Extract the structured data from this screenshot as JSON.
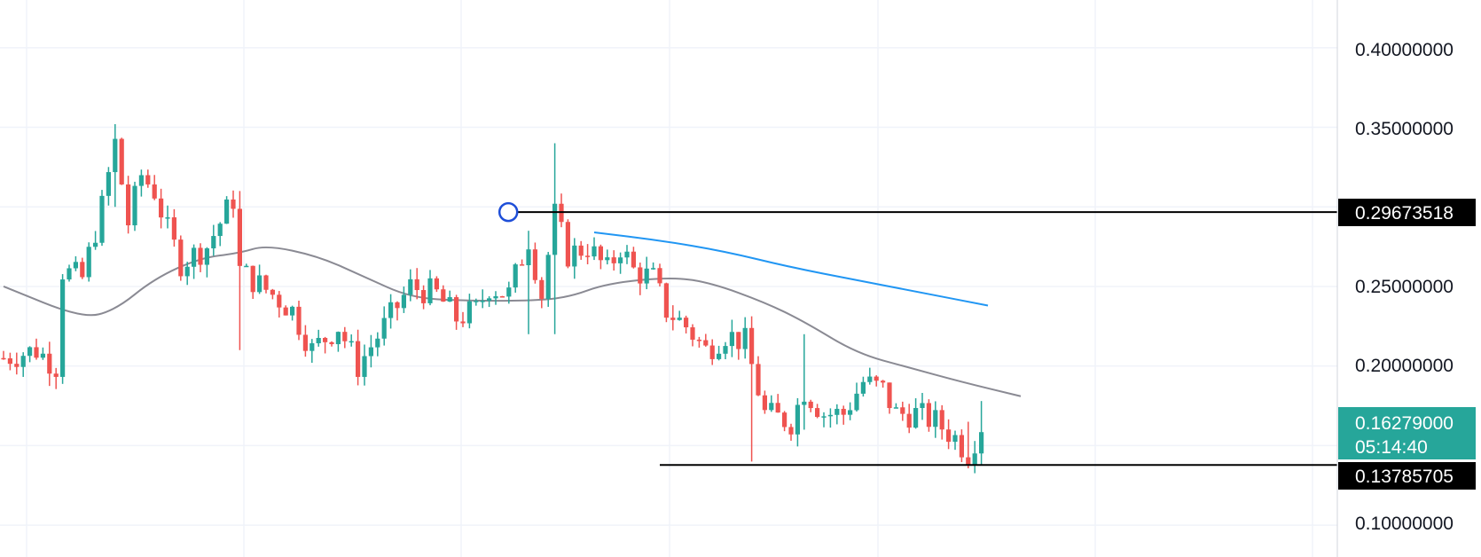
{
  "chart_data": {
    "type": "candlestick",
    "ylim": [
      0.08,
      0.43
    ],
    "ytick_labels": [
      "0.40000000",
      "0.35000000",
      "0.25000000",
      "0.20000000",
      "0.10000000"
    ],
    "ytick_values": [
      0.4,
      0.35,
      0.25,
      0.2,
      0.1
    ],
    "grid": true,
    "colors": {
      "up": "#26a69a",
      "down": "#ef5350",
      "ma_short": "#8a8a93",
      "ma_long": "#2196f3",
      "grid": "#f0f3fa",
      "axis_border": "#d1d4dc",
      "level_line": "#000000",
      "marker": "#1e4ed8"
    },
    "candle_count": 150,
    "pivots": [
      [
        0,
        0.205
      ],
      [
        5,
        0.21
      ],
      [
        8,
        0.2
      ],
      [
        9,
        0.26
      ],
      [
        12,
        0.255
      ],
      [
        15,
        0.3
      ],
      [
        17,
        0.34
      ],
      [
        19,
        0.29
      ],
      [
        21,
        0.32
      ],
      [
        23,
        0.31
      ],
      [
        25,
        0.285
      ],
      [
        27,
        0.265
      ],
      [
        31,
        0.275
      ],
      [
        35,
        0.305
      ],
      [
        36,
        0.26
      ],
      [
        41,
        0.245
      ],
      [
        44,
        0.235
      ],
      [
        47,
        0.21
      ],
      [
        51,
        0.225
      ],
      [
        54,
        0.2
      ],
      [
        58,
        0.225
      ],
      [
        62,
        0.25
      ],
      [
        66,
        0.245
      ],
      [
        69,
        0.23
      ],
      [
        72,
        0.235
      ],
      [
        74,
        0.25
      ],
      [
        77,
        0.245
      ],
      [
        80,
        0.28
      ],
      [
        82,
        0.245
      ],
      [
        84,
        0.295
      ],
      [
        86,
        0.27
      ],
      [
        89,
        0.275
      ],
      [
        92,
        0.26
      ],
      [
        94,
        0.275
      ],
      [
        96,
        0.26
      ],
      [
        99,
        0.255
      ],
      [
        101,
        0.235
      ],
      [
        104,
        0.225
      ],
      [
        107,
        0.21
      ],
      [
        110,
        0.22
      ],
      [
        113,
        0.215
      ],
      [
        115,
        0.185
      ],
      [
        116,
        0.17
      ],
      [
        120,
        0.165
      ],
      [
        122,
        0.185
      ],
      [
        125,
        0.17
      ],
      [
        128,
        0.17
      ],
      [
        131,
        0.19
      ],
      [
        134,
        0.185
      ],
      [
        136,
        0.17
      ],
      [
        139,
        0.17
      ],
      [
        142,
        0.165
      ],
      [
        145,
        0.155
      ],
      [
        147,
        0.145
      ],
      [
        149,
        0.163
      ]
    ],
    "wicks": [
      [
        84,
        0.34,
        0.22
      ],
      [
        114,
        0.21,
        0.14
      ],
      [
        122,
        0.22,
        0.16
      ],
      [
        36,
        0.31,
        0.21
      ],
      [
        17,
        0.352,
        0.3
      ],
      [
        80,
        0.285,
        0.22
      ],
      [
        147,
        0.165,
        0.138
      ],
      [
        149,
        0.178,
        0.158
      ]
    ],
    "ma_short": {
      "name": "",
      "x_start": 0,
      "x_end": 155,
      "points": [
        [
          0,
          0.25
        ],
        [
          12,
          0.23
        ],
        [
          17,
          0.235
        ],
        [
          23,
          0.255
        ],
        [
          30,
          0.268
        ],
        [
          36,
          0.271
        ],
        [
          40,
          0.276
        ],
        [
          48,
          0.269
        ],
        [
          55,
          0.256
        ],
        [
          62,
          0.243
        ],
        [
          70,
          0.241
        ],
        [
          80,
          0.241
        ],
        [
          86,
          0.243
        ],
        [
          92,
          0.252
        ],
        [
          102,
          0.256
        ],
        [
          108,
          0.252
        ],
        [
          116,
          0.24
        ],
        [
          122,
          0.228
        ],
        [
          130,
          0.208
        ],
        [
          138,
          0.199
        ],
        [
          146,
          0.19
        ],
        [
          155,
          0.181
        ]
      ]
    },
    "ma_long": {
      "name": "",
      "x_start": 90,
      "x_end": 150,
      "points": [
        [
          90,
          0.284
        ],
        [
          100,
          0.279
        ],
        [
          110,
          0.272
        ],
        [
          120,
          0.262
        ],
        [
          130,
          0.254
        ],
        [
          140,
          0.246
        ],
        [
          150,
          0.238
        ]
      ]
    },
    "levels": [
      {
        "value": 0.29673518,
        "label": "0.29673518",
        "x_from": 78
      },
      {
        "value": 0.13785705,
        "label": "0.13785705",
        "x_from": 100
      }
    ],
    "marker_price": 0.29673518,
    "current": {
      "value": 0.16279,
      "label": "0.16279000",
      "countdown": "05:14:40"
    }
  }
}
